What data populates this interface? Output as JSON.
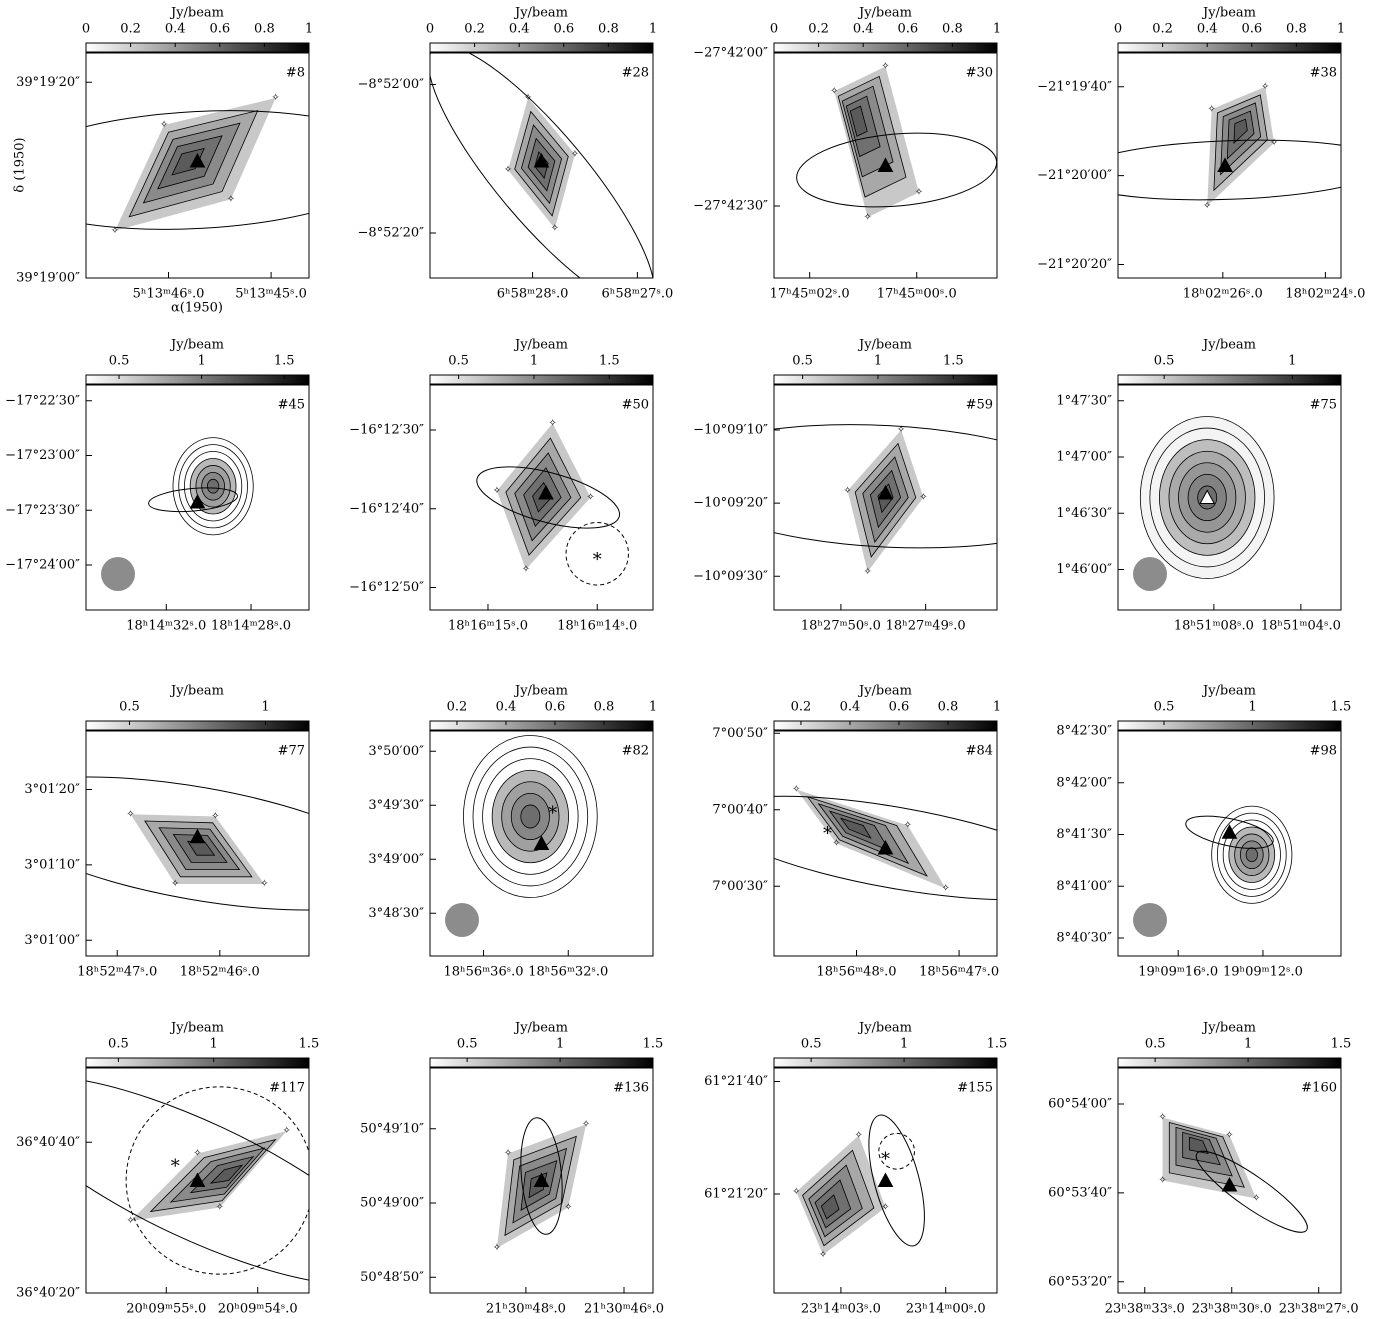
{
  "y_label": "δ (1950)",
  "x_label": "α(1950)",
  "panels": [
    {
      "tag": "#8",
      "cbar_label": "Jy/beam",
      "cbar_lim": [
        0,
        1
      ],
      "cbar_ticks": [
        0,
        0.2,
        0.4,
        0.6,
        0.8,
        1
      ],
      "yticks": [
        "39°19′20″",
        "39°19′00″"
      ],
      "xticks": [
        "5ʰ13ᵐ46ˢ.0",
        "5ʰ13ᵐ45ˢ.0"
      ]
    },
    {
      "tag": "#28",
      "cbar_label": "Jy/beam",
      "cbar_lim": [
        0,
        1
      ],
      "cbar_ticks": [
        0,
        0.2,
        0.4,
        0.6,
        0.8,
        1
      ],
      "yticks": [
        "−8°52′00″",
        "−8°52′20″"
      ],
      "xticks": [
        "6ʰ58ᵐ28ˢ.0",
        "6ʰ58ᵐ27ˢ.0"
      ]
    },
    {
      "tag": "#30",
      "cbar_label": "Jy/beam",
      "cbar_lim": [
        0,
        1
      ],
      "cbar_ticks": [
        0,
        0.2,
        0.4,
        0.6,
        0.8,
        1
      ],
      "yticks": [
        "−27°42′00″",
        "−27°42′30″"
      ],
      "xticks": [
        "17ʰ45ᵐ02ˢ.0",
        "17ʰ45ᵐ00ˢ.0"
      ]
    },
    {
      "tag": "#38",
      "cbar_label": "Jy/beam",
      "cbar_lim": [
        0,
        1
      ],
      "cbar_ticks": [
        0,
        0.2,
        0.4,
        0.6,
        0.8,
        1
      ],
      "yticks": [
        "−21°19′40″",
        "−21°20′00″",
        "−21°20′20″"
      ],
      "xticks": [
        "18ʰ02ᵐ26ˢ.0",
        "18ʰ02ᵐ24ˢ.0"
      ]
    },
    {
      "tag": "#45",
      "cbar_label": "Jy/beam",
      "cbar_lim": [
        0.3,
        1.65
      ],
      "cbar_ticks": [
        0.5,
        1,
        1.5
      ],
      "yticks": [
        "−17°22′30″",
        "−17°23′00″",
        "−17°23′30″",
        "−17°24′00″"
      ],
      "xticks": [
        "18ʰ14ᵐ32ˢ.0",
        "18ʰ14ᵐ28ˢ.0"
      ]
    },
    {
      "tag": "#50",
      "cbar_label": "Jy/beam",
      "cbar_lim": [
        0.31,
        1.79
      ],
      "cbar_ticks": [
        0.5,
        1,
        1.5
      ],
      "yticks": [
        "−16°12′30″",
        "−16°12′40″",
        "−16°12′50″"
      ],
      "xticks": [
        "18ʰ16ᵐ15ˢ.0",
        "18ʰ16ᵐ14ˢ.0"
      ]
    },
    {
      "tag": "#59",
      "cbar_label": "Jy/beam",
      "cbar_lim": [
        0.31,
        1.79
      ],
      "cbar_ticks": [
        0.5,
        1,
        1.5
      ],
      "yticks": [
        "−10°09′10″",
        "−10°09′20″",
        "−10°09′30″"
      ],
      "xticks": [
        "18ʰ27ᵐ50ˢ.0",
        "18ʰ27ᵐ49ˢ.0"
      ]
    },
    {
      "tag": "#75",
      "cbar_label": "Jy/beam",
      "cbar_lim": [
        0.32,
        1.19
      ],
      "cbar_ticks": [
        0.5,
        1
      ],
      "yticks": [
        "1°47′30″",
        "1°47′00″",
        "1°46′30″",
        "1°46′00″"
      ],
      "xticks": [
        "18ʰ51ᵐ08ˢ.0",
        "18ʰ51ᵐ04ˢ.0"
      ]
    },
    {
      "tag": "#77",
      "cbar_label": "Jy/beam",
      "cbar_lim": [
        0.34,
        1.16
      ],
      "cbar_ticks": [
        0.5,
        1
      ],
      "yticks": [
        "3°01′20″",
        "3°01′10″",
        "3°01′00″"
      ],
      "xticks": [
        "18ʰ52ᵐ47ˢ.0",
        "18ʰ52ᵐ46ˢ.0"
      ]
    },
    {
      "tag": "#82",
      "cbar_label": "Jy/beam",
      "cbar_lim": [
        0.09,
        1
      ],
      "cbar_ticks": [
        0.2,
        0.4,
        0.6,
        0.8,
        1
      ],
      "yticks": [
        "3°50′00″",
        "3°49′30″",
        "3°49′00″",
        "3°48′30″"
      ],
      "xticks": [
        "18ʰ56ᵐ36ˢ.0",
        "18ʰ56ᵐ32ˢ.0"
      ]
    },
    {
      "tag": "#84",
      "cbar_label": "Jy/beam",
      "cbar_lim": [
        0.09,
        1
      ],
      "cbar_ticks": [
        0.2,
        0.4,
        0.6,
        0.8,
        1
      ],
      "yticks": [
        "7°00′50″",
        "7°00′40″",
        "7°00′30″"
      ],
      "xticks": [
        "18ʰ56ᵐ48ˢ.0",
        "18ʰ56ᵐ47ˢ.0"
      ]
    },
    {
      "tag": "#98",
      "cbar_label": "Jy/beam",
      "cbar_lim": [
        0.24,
        1.5
      ],
      "cbar_ticks": [
        0.5,
        1,
        1.5
      ],
      "yticks": [
        "8°42′30″",
        "8°42′00″",
        "8°41′30″",
        "8°41′00″",
        "8°40′30″"
      ],
      "xticks": [
        "19ʰ09ᵐ16ˢ.0",
        "19ʰ09ᵐ12ˢ.0"
      ]
    },
    {
      "tag": "#117",
      "cbar_label": "Jy/beam",
      "cbar_lim": [
        0.33,
        1.5
      ],
      "cbar_ticks": [
        0.5,
        1,
        1.5
      ],
      "yticks": [
        "36°40′40″",
        "36°40′20″"
      ],
      "xticks": [
        "20ʰ09ᵐ55ˢ.0",
        "20ʰ09ᵐ54ˢ.0"
      ]
    },
    {
      "tag": "#136",
      "cbar_label": "Jy/beam",
      "cbar_lim": [
        0.3,
        1.5
      ],
      "cbar_ticks": [
        0.5,
        1,
        1.5
      ],
      "yticks": [
        "50°49′10″",
        "50°49′00″",
        "50°48′50″"
      ],
      "xticks": [
        "21ʰ30ᵐ48ˢ.0",
        "21ʰ30ᵐ46ˢ.0"
      ]
    },
    {
      "tag": "#155",
      "cbar_label": "Jy/beam",
      "cbar_lim": [
        0.3,
        1.5
      ],
      "cbar_ticks": [
        0.5,
        1,
        1.5
      ],
      "yticks": [
        "61°21′40″",
        "61°21′20″"
      ],
      "xticks": [
        "23ʰ14ᵐ03ˢ.0",
        "23ʰ14ᵐ00ˢ.0"
      ]
    },
    {
      "tag": "#160",
      "cbar_label": "Jy/beam",
      "cbar_lim": [
        0.3,
        1.5
      ],
      "cbar_ticks": [
        0.5,
        1,
        1.5
      ],
      "yticks": [
        "60°54′00″",
        "60°53′40″",
        "60°53′20″"
      ],
      "xticks": [
        "23ʰ38ᵐ33ˢ.0",
        "23ʰ38ᵐ30ˢ.0",
        "23ʰ38ᵐ27ˢ.0"
      ]
    }
  ]
}
